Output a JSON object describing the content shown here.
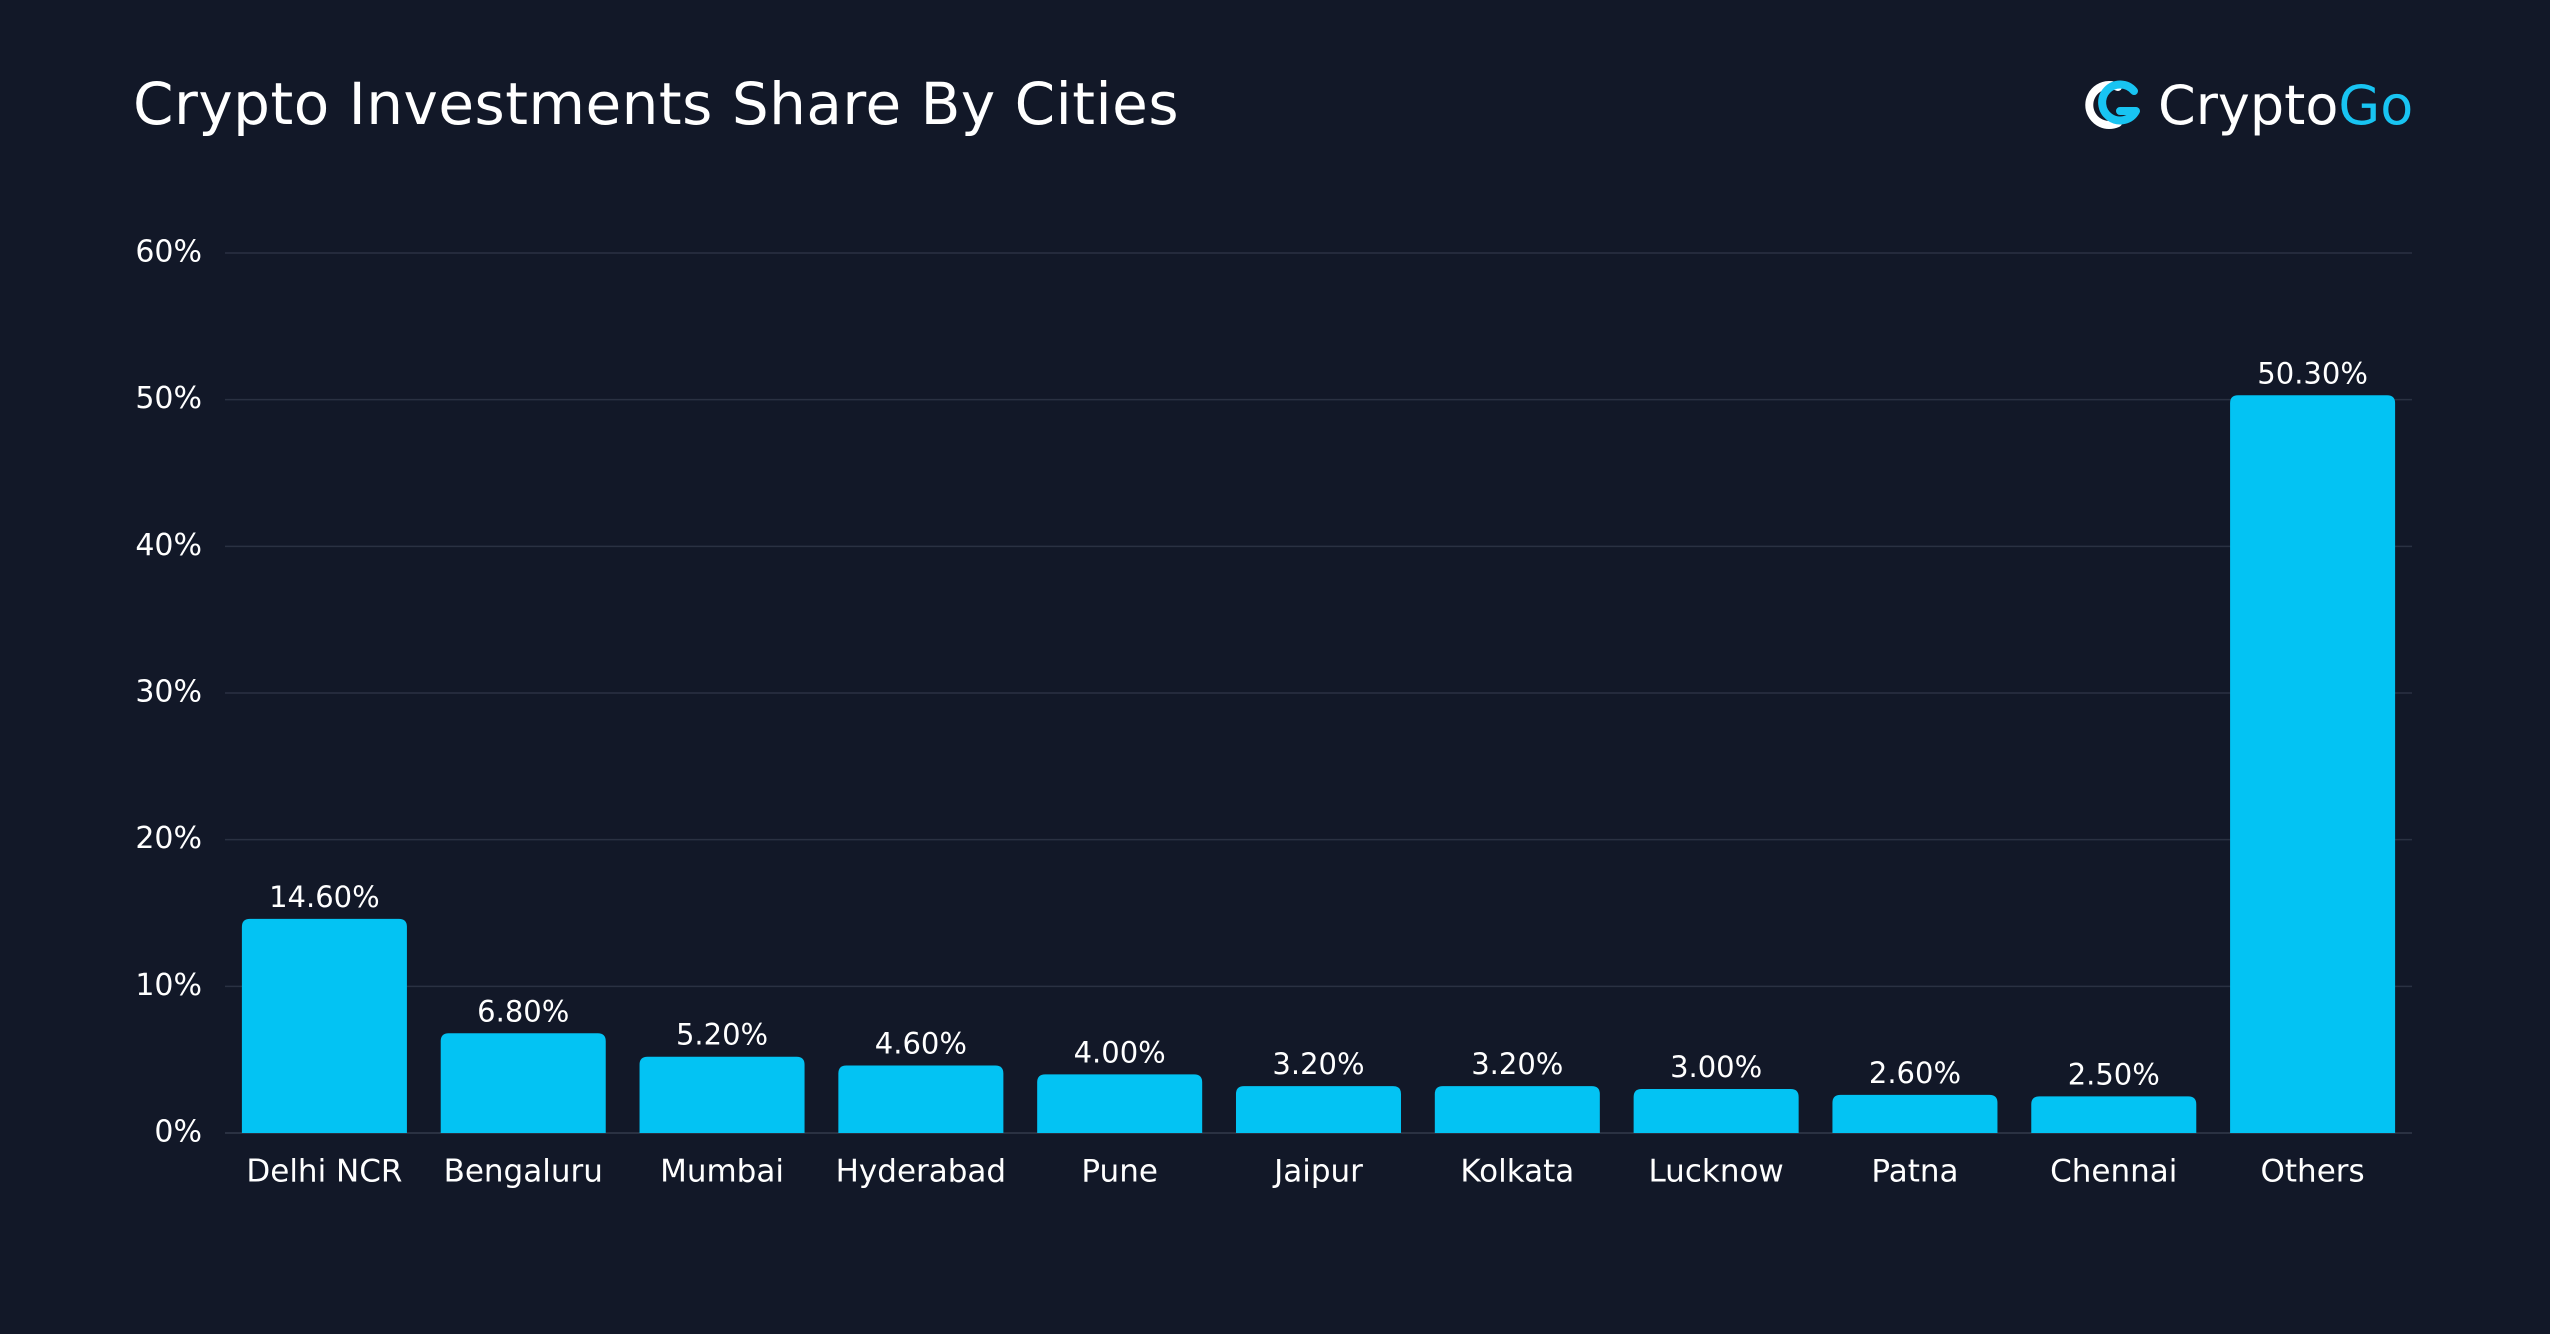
{
  "header": {
    "title": "Crypto Investments Share By Cities"
  },
  "logo": {
    "text_part1": "Crypto",
    "text_part2": "Go",
    "icon": "cryptogo-logo-icon"
  },
  "colors": {
    "background": "#121828",
    "bar": "#03c3f3",
    "grid": "#2a3142",
    "text": "#ffffff",
    "logo_accent": "#18c4f2"
  },
  "chart_data": {
    "type": "bar",
    "title": "Crypto Investments Share By Cities",
    "xlabel": "",
    "ylabel": "",
    "categories": [
      "Delhi NCR",
      "Bengaluru",
      "Mumbai",
      "Hyderabad",
      "Pune",
      "Jaipur",
      "Kolkata",
      "Lucknow",
      "Patna",
      "Chennai",
      "Others"
    ],
    "values": [
      14.6,
      6.8,
      5.2,
      4.6,
      4.0,
      3.2,
      3.2,
      3.0,
      2.6,
      2.5,
      50.3
    ],
    "value_labels": [
      "14.60%",
      "6.80%",
      "5.20%",
      "4.60%",
      "4.00%",
      "3.20%",
      "3.20%",
      "3.00%",
      "2.60%",
      "2.50%",
      "50.30%"
    ],
    "ylim": [
      0,
      60
    ],
    "yticks": [
      0,
      10,
      20,
      30,
      40,
      50,
      60
    ],
    "ytick_labels": [
      "0%",
      "10%",
      "20%",
      "30%",
      "40%",
      "50%",
      "60%"
    ],
    "grid": true,
    "legend": "none"
  }
}
